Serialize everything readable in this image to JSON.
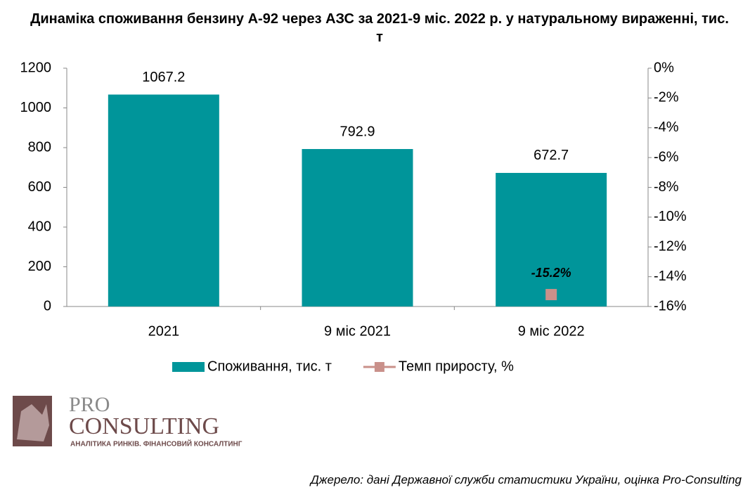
{
  "chart_data": {
    "type": "bar",
    "title": "Динаміка споживання бензину А-92 через АЗС за 2021-9 міс. 2022 р. у натуральному вираженні, тис. т",
    "categories": [
      "2021",
      "9 міс 2021",
      "9 міс 2022"
    ],
    "series": [
      {
        "name": "Споживання, тис. т",
        "color": "#00959a",
        "type": "bar",
        "values": [
          1067.2,
          792.9,
          672.7
        ]
      },
      {
        "name": "Темп приросту, %",
        "color": "#c9908a",
        "type": "line",
        "axis": "y2",
        "values": [
          null,
          null,
          -15.2
        ],
        "value_labels": [
          null,
          null,
          "-15.2%"
        ]
      }
    ],
    "ylim": [
      0,
      1200
    ],
    "yticks": [
      0,
      200,
      400,
      600,
      800,
      1000,
      1200
    ],
    "y2lim": [
      -16,
      0
    ],
    "y2ticks": [
      {
        "value": -16,
        "label": "-16%"
      },
      {
        "value": -14,
        "label": "-14%"
      },
      {
        "value": -12,
        "label": "-12%"
      },
      {
        "value": -10,
        "label": "-10%"
      },
      {
        "value": -8,
        "label": "-8%"
      },
      {
        "value": -6,
        "label": "-6%"
      },
      {
        "value": -4,
        "label": "-4%"
      },
      {
        "value": -2,
        "label": "-2%"
      },
      {
        "value": 0,
        "label": "0%"
      }
    ],
    "grid": false,
    "legend": "bottom"
  },
  "logo": {
    "name_top": "PRO",
    "name_bottom": "CONSULTING",
    "tagline": "АНАЛІТИКА РИНКІВ. ФІНАНСОВИЙ КОНСАЛТИНГ"
  },
  "source": "Джерело: дані Державної служби статистики України, оцінка Pro-Consulting"
}
